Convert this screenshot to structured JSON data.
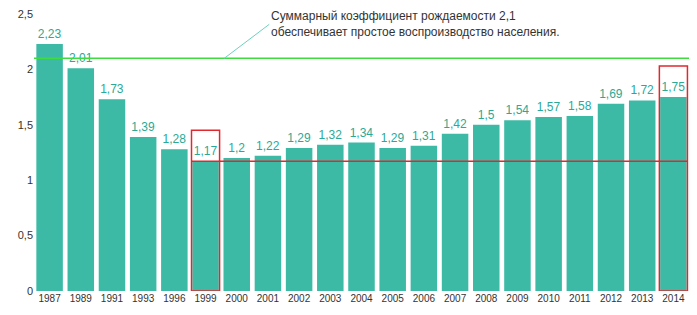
{
  "chart_data": {
    "type": "bar",
    "categories": [
      "1987",
      "1989",
      "1991",
      "1993",
      "1996",
      "1999",
      "2000",
      "2001",
      "2002",
      "2003",
      "2004",
      "2005",
      "2006",
      "2007",
      "2008",
      "2009",
      "2010",
      "2011",
      "2012",
      "2013",
      "2014"
    ],
    "values": [
      2.23,
      2.01,
      1.73,
      1.39,
      1.28,
      1.17,
      1.2,
      1.22,
      1.29,
      1.32,
      1.34,
      1.29,
      1.31,
      1.42,
      1.5,
      1.54,
      1.57,
      1.58,
      1.69,
      1.72,
      1.75
    ],
    "value_labels": [
      "2,23",
      "2,01",
      "1,73",
      "1,39",
      "1,28",
      "1,17",
      "1,2",
      "1,22",
      "1,29",
      "1,32",
      "1,34",
      "1,29",
      "1,31",
      "1,42",
      "1,5",
      "1,54",
      "1,57",
      "1,58",
      "1,69",
      "1,72",
      "1,75"
    ],
    "color": "#3dbaa6",
    "data_labels": true,
    "grid": false,
    "ylim": [
      0,
      2.5
    ],
    "yticks": [
      0,
      {
        "value": 0.5,
        "label": "0,5"
      },
      1,
      {
        "value": 1.5,
        "label": "1,5"
      },
      2,
      {
        "value": 2.5,
        "label": "2,5"
      }
    ],
    "reference_lines": [
      {
        "value": 2.1,
        "color": "#3fdc3f"
      },
      {
        "value": 1.17,
        "color": "#e0282e"
      }
    ],
    "highlighted_categories": [
      "1999",
      "2014"
    ],
    "annotations": [
      {
        "text": [
          "Суммарный коэффициент рождаемости 2,1",
          "обеспечивает простое воспроизводство населения."
        ]
      }
    ]
  }
}
